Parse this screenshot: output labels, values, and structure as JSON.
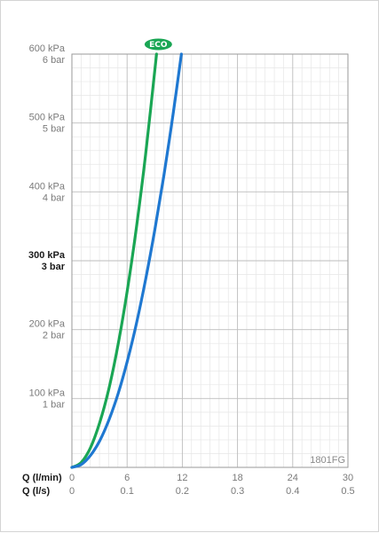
{
  "chart_data": {
    "type": "line",
    "model_code": "1801FG",
    "badge_label": "ECO",
    "badge_color": "#1aa654",
    "y_ticks": [
      {
        "value": 100,
        "kpa": "100 kPa",
        "bar": "1 bar",
        "bold": false
      },
      {
        "value": 200,
        "kpa": "200 kPa",
        "bar": "2 bar",
        "bold": false
      },
      {
        "value": 300,
        "kpa": "300 kPa",
        "bar": "3 bar",
        "bold": true
      },
      {
        "value": 400,
        "kpa": "400 kPa",
        "bar": "4 bar",
        "bold": false
      },
      {
        "value": 500,
        "kpa": "500 kPa",
        "bar": "5 bar",
        "bold": false
      },
      {
        "value": 600,
        "kpa": "600 kPa",
        "bar": "6 bar",
        "bold": false
      }
    ],
    "x_axes": [
      {
        "title": "Q (l/min)",
        "ticks": [
          "0",
          "6",
          "12",
          "18",
          "24",
          "30"
        ]
      },
      {
        "title": "Q (l/s)",
        "ticks": [
          "0",
          "0.1",
          "0.2",
          "0.3",
          "0.4",
          "0.5"
        ]
      }
    ],
    "xlim": [
      0,
      30
    ],
    "ylim": [
      0,
      600
    ],
    "grid": true,
    "series": [
      {
        "color": "#1aa654",
        "badge": true,
        "x": [
          0,
          1,
          2,
          3,
          4,
          5,
          6,
          7,
          8,
          9.2
        ],
        "y": [
          0,
          7,
          28,
          64,
          113,
          177,
          255,
          347,
          453,
          600
        ]
      },
      {
        "color": "#1f78d1",
        "badge": false,
        "x": [
          0,
          1,
          2,
          3,
          4,
          5,
          6,
          7,
          8,
          9,
          10,
          11,
          11.9
        ],
        "y": [
          0,
          4,
          17,
          38,
          68,
          106,
          153,
          208,
          272,
          344,
          424,
          513,
          600
        ]
      }
    ]
  }
}
